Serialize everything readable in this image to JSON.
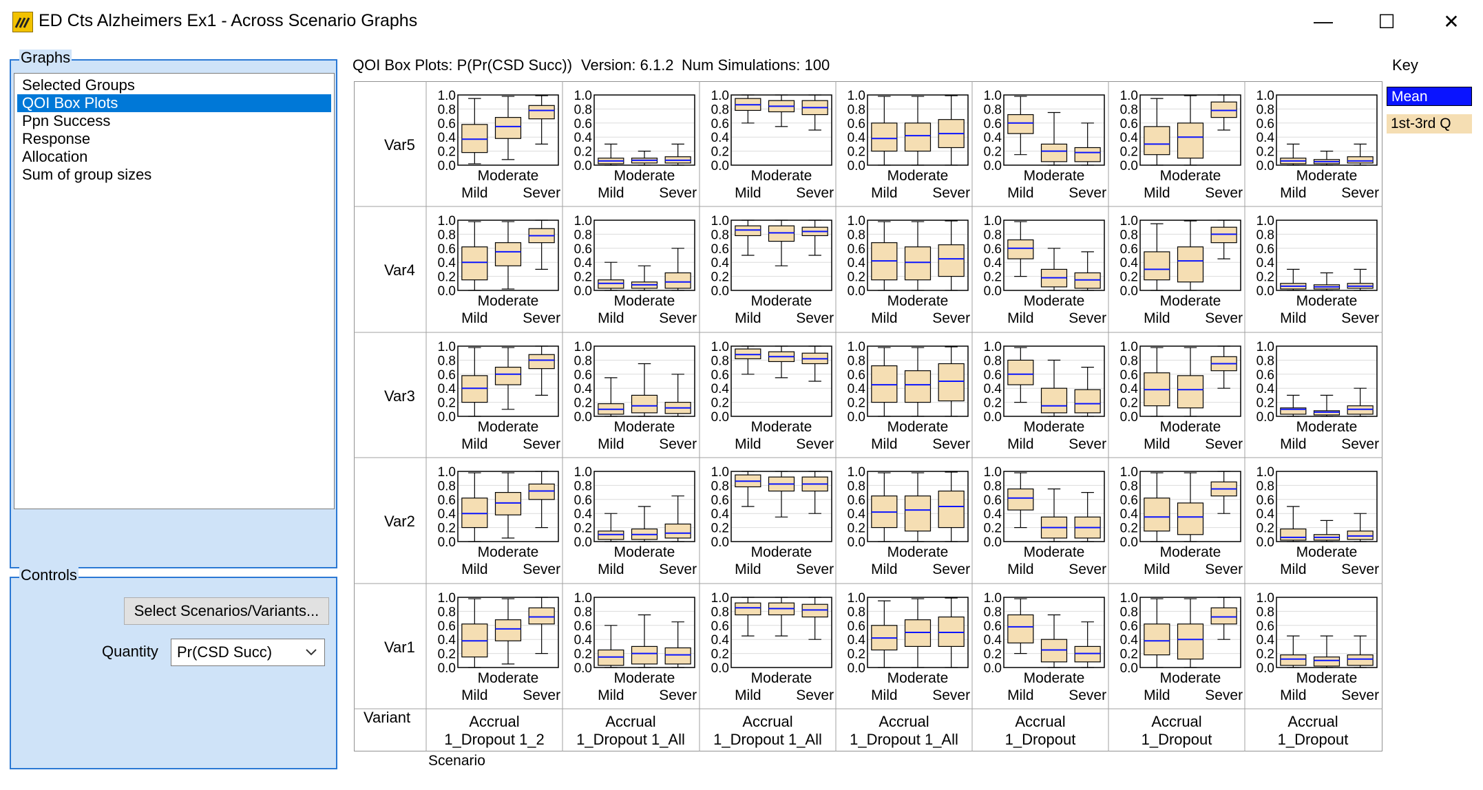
{
  "window": {
    "title": "ED Cts Alzheimers Ex1 - Across Scenario Graphs",
    "minimize": "—",
    "maximize": "☐",
    "close": "✕"
  },
  "graphs_panel": {
    "legend": "Graphs",
    "items": [
      {
        "label": "Selected Groups",
        "selected": false
      },
      {
        "label": "QOI Box Plots",
        "selected": true
      },
      {
        "label": "Ppn Success",
        "selected": false
      },
      {
        "label": "Response",
        "selected": false
      },
      {
        "label": "Allocation",
        "selected": false
      },
      {
        "label": "Sum of group sizes",
        "selected": false
      }
    ]
  },
  "controls_panel": {
    "legend": "Controls",
    "select_button": "Select Scenarios/Variants...",
    "quantity_label": "Quantity",
    "quantity_value": "Pr(CSD Succ)"
  },
  "header": {
    "plot_title": "QOI Box Plots: P(Pr(CSD Succ))",
    "version": "Version: 6.1.2",
    "num_sims": "Num Simulations: 100"
  },
  "key": {
    "label": "Key",
    "mean": "Mean",
    "quartile": "1st-3rd Q",
    "mean_color": "#0a14ff",
    "box_color": "#f5deb3"
  },
  "grid": {
    "variant_label": "Variant",
    "scenario_label": "Scenario",
    "variants": [
      "Var5",
      "Var4",
      "Var3",
      "Var2",
      "Var1"
    ],
    "scenarios": [
      {
        "line1": "Accrual",
        "line2": "1_Dropout 1_2"
      },
      {
        "line1": "Accrual",
        "line2": "1_Dropout 1_All"
      },
      {
        "line1": "Accrual",
        "line2": "1_Dropout 1_All"
      },
      {
        "line1": "Accrual",
        "line2": "1_Dropout 1_All"
      },
      {
        "line1": "Accrual",
        "line2": "1_Dropout"
      },
      {
        "line1": "Accrual",
        "line2": "1_Dropout"
      },
      {
        "line1": "Accrual",
        "line2": "1_Dropout"
      }
    ]
  },
  "chart_data": {
    "type": "box",
    "yticks": [
      "1.0",
      "0.8",
      "0.6",
      "0.4",
      "0.2",
      "0.0"
    ],
    "ylim": [
      0,
      1
    ],
    "category_top": "Moderate",
    "category_left": "Mild",
    "category_right": "Sever",
    "cells": [
      [
        [
          [
            0.02,
            0.18,
            0.37,
            0.58,
            0.95
          ],
          [
            0.08,
            0.38,
            0.55,
            0.68,
            0.98
          ],
          [
            0.3,
            0.66,
            0.78,
            0.85,
            0.99
          ]
        ],
        [
          [
            0,
            0.02,
            0.06,
            0.1,
            0.3
          ],
          [
            0,
            0.03,
            0.07,
            0.1,
            0.2
          ],
          [
            0,
            0.03,
            0.07,
            0.12,
            0.3
          ]
        ],
        [
          [
            0.6,
            0.78,
            0.86,
            0.95,
            1
          ],
          [
            0.55,
            0.76,
            0.84,
            0.92,
            1
          ],
          [
            0.5,
            0.72,
            0.82,
            0.92,
            1
          ]
        ],
        [
          [
            0,
            0.2,
            0.38,
            0.6,
            0.98
          ],
          [
            0,
            0.2,
            0.42,
            0.6,
            0.98
          ],
          [
            0,
            0.25,
            0.45,
            0.65,
            0.99
          ]
        ],
        [
          [
            0.15,
            0.45,
            0.6,
            0.72,
            0.98
          ],
          [
            0,
            0.05,
            0.2,
            0.3,
            0.75
          ],
          [
            0,
            0.05,
            0.18,
            0.25,
            0.6
          ]
        ],
        [
          [
            0,
            0.15,
            0.3,
            0.55,
            0.95
          ],
          [
            0,
            0.1,
            0.4,
            0.6,
            0.99
          ],
          [
            0.5,
            0.68,
            0.78,
            0.9,
            1
          ]
        ],
        [
          [
            0,
            0.02,
            0.06,
            0.1,
            0.3
          ],
          [
            0,
            0.02,
            0.05,
            0.08,
            0.2
          ],
          [
            0,
            0.03,
            0.06,
            0.12,
            0.3
          ]
        ]
      ],
      [
        [
          [
            0,
            0.15,
            0.4,
            0.62,
            0.98
          ],
          [
            0.02,
            0.35,
            0.55,
            0.68,
            0.98
          ],
          [
            0.3,
            0.68,
            0.78,
            0.88,
            1
          ]
        ],
        [
          [
            0,
            0.03,
            0.1,
            0.15,
            0.4
          ],
          [
            0,
            0.03,
            0.08,
            0.12,
            0.35
          ],
          [
            0,
            0.03,
            0.12,
            0.25,
            0.6
          ]
        ],
        [
          [
            0.5,
            0.78,
            0.86,
            0.92,
            1
          ],
          [
            0.35,
            0.7,
            0.82,
            0.92,
            1
          ],
          [
            0.5,
            0.78,
            0.84,
            0.9,
            1
          ]
        ],
        [
          [
            0,
            0.15,
            0.42,
            0.68,
            0.98
          ],
          [
            0,
            0.15,
            0.4,
            0.62,
            0.98
          ],
          [
            0,
            0.2,
            0.45,
            0.65,
            0.99
          ]
        ],
        [
          [
            0.2,
            0.45,
            0.6,
            0.72,
            0.98
          ],
          [
            0,
            0.05,
            0.18,
            0.3,
            0.6
          ],
          [
            0,
            0.03,
            0.15,
            0.25,
            0.55
          ]
        ],
        [
          [
            0,
            0.15,
            0.3,
            0.55,
            0.95
          ],
          [
            0,
            0.12,
            0.42,
            0.62,
            0.99
          ],
          [
            0.45,
            0.68,
            0.8,
            0.9,
            1
          ]
        ],
        [
          [
            0,
            0.02,
            0.06,
            0.1,
            0.3
          ],
          [
            0,
            0.02,
            0.05,
            0.08,
            0.25
          ],
          [
            0,
            0.03,
            0.06,
            0.1,
            0.3
          ]
        ]
      ],
      [
        [
          [
            0,
            0.2,
            0.4,
            0.58,
            0.98
          ],
          [
            0.1,
            0.45,
            0.6,
            0.7,
            0.98
          ],
          [
            0.3,
            0.68,
            0.8,
            0.88,
            1
          ]
        ],
        [
          [
            0,
            0.03,
            0.1,
            0.18,
            0.55
          ],
          [
            0,
            0.05,
            0.15,
            0.3,
            0.75
          ],
          [
            0,
            0.04,
            0.12,
            0.2,
            0.6
          ]
        ],
        [
          [
            0.6,
            0.82,
            0.88,
            0.96,
            1
          ],
          [
            0.55,
            0.78,
            0.85,
            0.92,
            1
          ],
          [
            0.5,
            0.75,
            0.82,
            0.9,
            1
          ]
        ],
        [
          [
            0,
            0.2,
            0.45,
            0.72,
            0.98
          ],
          [
            0,
            0.2,
            0.45,
            0.65,
            0.98
          ],
          [
            0,
            0.22,
            0.5,
            0.75,
            0.99
          ]
        ],
        [
          [
            0.2,
            0.45,
            0.6,
            0.8,
            0.98
          ],
          [
            0,
            0.05,
            0.15,
            0.4,
            0.8
          ],
          [
            0,
            0.05,
            0.18,
            0.38,
            0.7
          ]
        ],
        [
          [
            0,
            0.15,
            0.38,
            0.62,
            0.98
          ],
          [
            0,
            0.12,
            0.38,
            0.58,
            0.98
          ],
          [
            0.4,
            0.65,
            0.75,
            0.85,
            1
          ]
        ],
        [
          [
            0,
            0.03,
            0.1,
            0.12,
            0.3
          ],
          [
            0,
            0.02,
            0.06,
            0.08,
            0.3
          ],
          [
            0,
            0.03,
            0.1,
            0.15,
            0.4
          ]
        ]
      ],
      [
        [
          [
            0,
            0.2,
            0.4,
            0.62,
            0.98
          ],
          [
            0.05,
            0.38,
            0.55,
            0.7,
            0.98
          ],
          [
            0.2,
            0.6,
            0.72,
            0.82,
            1
          ]
        ],
        [
          [
            0,
            0.03,
            0.1,
            0.15,
            0.4
          ],
          [
            0,
            0.03,
            0.1,
            0.18,
            0.5
          ],
          [
            0,
            0.05,
            0.12,
            0.25,
            0.65
          ]
        ],
        [
          [
            0.5,
            0.78,
            0.86,
            0.95,
            1
          ],
          [
            0.35,
            0.72,
            0.82,
            0.92,
            1
          ],
          [
            0.4,
            0.72,
            0.82,
            0.92,
            1
          ]
        ],
        [
          [
            0,
            0.2,
            0.42,
            0.65,
            0.98
          ],
          [
            0,
            0.15,
            0.45,
            0.65,
            0.98
          ],
          [
            0,
            0.2,
            0.5,
            0.72,
            0.99
          ]
        ],
        [
          [
            0.2,
            0.45,
            0.62,
            0.75,
            0.98
          ],
          [
            0,
            0.05,
            0.2,
            0.35,
            0.75
          ],
          [
            0,
            0.05,
            0.2,
            0.35,
            0.7
          ]
        ],
        [
          [
            0,
            0.15,
            0.35,
            0.62,
            0.98
          ],
          [
            0,
            0.1,
            0.35,
            0.55,
            0.98
          ],
          [
            0.4,
            0.65,
            0.75,
            0.85,
            1
          ]
        ],
        [
          [
            0,
            0.02,
            0.06,
            0.18,
            0.5
          ],
          [
            0,
            0.02,
            0.06,
            0.1,
            0.3
          ],
          [
            0,
            0.03,
            0.08,
            0.15,
            0.4
          ]
        ]
      ],
      [
        [
          [
            0,
            0.15,
            0.38,
            0.62,
            0.98
          ],
          [
            0.05,
            0.38,
            0.55,
            0.68,
            0.98
          ],
          [
            0.2,
            0.62,
            0.72,
            0.85,
            1
          ]
        ],
        [
          [
            0,
            0.03,
            0.15,
            0.25,
            0.6
          ],
          [
            0,
            0.05,
            0.2,
            0.3,
            0.75
          ],
          [
            0,
            0.05,
            0.18,
            0.28,
            0.65
          ]
        ],
        [
          [
            0.45,
            0.75,
            0.85,
            0.92,
            1
          ],
          [
            0.45,
            0.75,
            0.84,
            0.92,
            1
          ],
          [
            0.4,
            0.72,
            0.82,
            0.9,
            1
          ]
        ],
        [
          [
            0,
            0.25,
            0.42,
            0.6,
            0.95
          ],
          [
            0,
            0.3,
            0.5,
            0.68,
            0.98
          ],
          [
            0,
            0.3,
            0.5,
            0.72,
            0.99
          ]
        ],
        [
          [
            0.2,
            0.35,
            0.58,
            0.75,
            0.98
          ],
          [
            0,
            0.08,
            0.25,
            0.4,
            0.75
          ],
          [
            0,
            0.08,
            0.2,
            0.3,
            0.65
          ]
        ],
        [
          [
            0,
            0.18,
            0.38,
            0.62,
            0.98
          ],
          [
            0,
            0.12,
            0.4,
            0.62,
            0.98
          ],
          [
            0.4,
            0.62,
            0.72,
            0.85,
            1
          ]
        ],
        [
          [
            0,
            0.03,
            0.12,
            0.18,
            0.45
          ],
          [
            0,
            0.02,
            0.1,
            0.15,
            0.45
          ],
          [
            0,
            0.03,
            0.12,
            0.18,
            0.45
          ]
        ]
      ]
    ]
  }
}
